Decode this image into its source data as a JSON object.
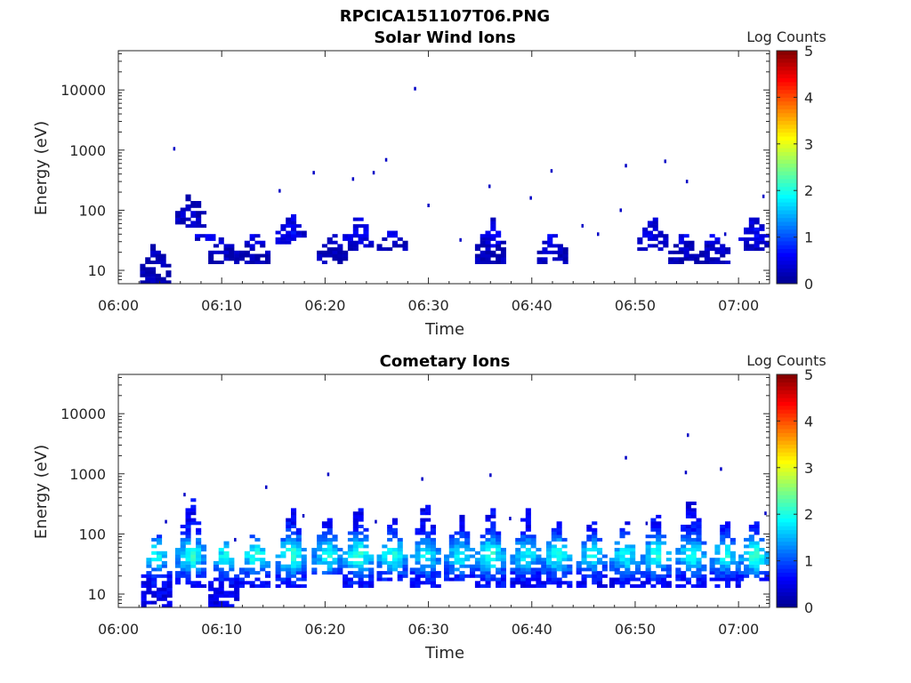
{
  "figure": {
    "title": "RPCICA151107T06.PNG"
  },
  "chart_data": [
    {
      "type": "heatmap",
      "title": "Solar Wind Ions",
      "xlabel": "Time",
      "ylabel": "Energy (eV)",
      "x_ticks": [
        "06:00",
        "06:10",
        "06:20",
        "06:30",
        "06:40",
        "06:50",
        "07:00"
      ],
      "y_ticks": [
        "10",
        "100",
        "1000",
        "10000"
      ],
      "y_scale": "log",
      "xlim": [
        "06:00",
        "07:03"
      ],
      "ylim": [
        6,
        45000
      ],
      "colorbar": {
        "label": "Log Counts",
        "ticks": [
          "0",
          "1",
          "2",
          "3",
          "4",
          "5"
        ],
        "range": [
          0,
          5
        ],
        "colormap": "jet"
      },
      "colormap": [
        "#00008f",
        "#0000ff",
        "#0080ff",
        "#00ffff",
        "#80ff80",
        "#ffff00",
        "#ff8000",
        "#ff0000",
        "#800000"
      ],
      "cell_width_min": 0.5,
      "bursts": [
        {
          "t": 3.4,
          "elo": 6,
          "ehi": 32,
          "level": 0.35
        },
        {
          "t": 6.8,
          "elo": 50,
          "ehi": 210,
          "level": 0.4
        },
        {
          "t": 8.2,
          "elo": 30,
          "ehi": 45,
          "level": 0.4
        },
        {
          "t": 10.0,
          "elo": 12,
          "ehi": 38,
          "level": 0.4
        },
        {
          "t": 13.0,
          "elo": 12,
          "ehi": 45,
          "level": 0.45
        },
        {
          "t": 16.5,
          "elo": 25,
          "ehi": 85,
          "level": 0.45
        },
        {
          "t": 20.5,
          "elo": 12,
          "ehi": 40,
          "level": 0.4
        },
        {
          "t": 23.0,
          "elo": 20,
          "ehi": 90,
          "level": 0.45
        },
        {
          "t": 26.3,
          "elo": 20,
          "ehi": 45,
          "level": 0.4
        },
        {
          "t": 35.8,
          "elo": 12,
          "ehi": 80,
          "level": 0.45
        },
        {
          "t": 41.8,
          "elo": 12,
          "ehi": 45,
          "level": 0.45
        },
        {
          "t": 51.5,
          "elo": 20,
          "ehi": 80,
          "level": 0.4
        },
        {
          "t": 54.5,
          "elo": 12,
          "ehi": 45,
          "level": 0.4
        },
        {
          "t": 57.5,
          "elo": 12,
          "ehi": 45,
          "level": 0.4
        },
        {
          "t": 61.3,
          "elo": 20,
          "ehi": 85,
          "level": 0.4
        }
      ],
      "sparse_points": [
        {
          "t": 5.3,
          "e": 1050,
          "level": 0.3
        },
        {
          "t": 28.6,
          "e": 10500,
          "level": 0.3
        },
        {
          "t": 18.8,
          "e": 420,
          "level": 0.3
        },
        {
          "t": 22.6,
          "e": 330,
          "level": 0.3
        },
        {
          "t": 24.6,
          "e": 420,
          "level": 0.3
        },
        {
          "t": 25.8,
          "e": 690,
          "level": 0.3
        },
        {
          "t": 41.8,
          "e": 450,
          "level": 0.3
        },
        {
          "t": 49.0,
          "e": 550,
          "level": 0.3
        },
        {
          "t": 52.8,
          "e": 650,
          "level": 0.3
        },
        {
          "t": 35.8,
          "e": 250,
          "level": 0.3
        },
        {
          "t": 15.5,
          "e": 210,
          "level": 0.3
        },
        {
          "t": 29.9,
          "e": 120,
          "level": 0.3
        },
        {
          "t": 48.5,
          "e": 100,
          "level": 0.3
        },
        {
          "t": 39.8,
          "e": 160,
          "level": 0.3
        },
        {
          "t": 62.3,
          "e": 170,
          "level": 0.3
        },
        {
          "t": 54.9,
          "e": 300,
          "level": 0.3
        },
        {
          "t": 44.8,
          "e": 55,
          "level": 0.3
        },
        {
          "t": 33.0,
          "e": 32,
          "level": 0.3
        },
        {
          "t": 46.3,
          "e": 40,
          "level": 0.3
        },
        {
          "t": 58.6,
          "e": 40,
          "level": 0.3
        }
      ]
    },
    {
      "type": "heatmap",
      "title": "Cometary Ions",
      "xlabel": "Time",
      "ylabel": "Energy (eV)",
      "x_ticks": [
        "06:00",
        "06:10",
        "06:20",
        "06:30",
        "06:40",
        "06:50",
        "07:00"
      ],
      "y_ticks": [
        "10",
        "100",
        "1000",
        "10000"
      ],
      "y_scale": "log",
      "xlim": [
        "06:00",
        "07:03"
      ],
      "ylim": [
        6,
        45000
      ],
      "colorbar": {
        "label": "Log Counts",
        "ticks": [
          "0",
          "1",
          "2",
          "3",
          "4",
          "5"
        ],
        "range": [
          0,
          5
        ],
        "colormap": "jet"
      },
      "colormap": [
        "#00008f",
        "#0000ff",
        "#0080ff",
        "#00ffff",
        "#80ff80",
        "#ffff00",
        "#ff8000",
        "#ff0000",
        "#800000"
      ],
      "cell_width_min": 0.5,
      "bursts": [
        {
          "t": 3.5,
          "elo": 6,
          "ehi": 120,
          "level": 1.45
        },
        {
          "t": 6.8,
          "elo": 12,
          "ehi": 550,
          "level": 1.6
        },
        {
          "t": 10.0,
          "elo": 6,
          "ehi": 90,
          "level": 1.45
        },
        {
          "t": 13.0,
          "elo": 12,
          "ehi": 120,
          "level": 1.6
        },
        {
          "t": 16.5,
          "elo": 12,
          "ehi": 320,
          "level": 1.7
        },
        {
          "t": 20.0,
          "elo": 20,
          "ehi": 220,
          "level": 1.5
        },
        {
          "t": 23.0,
          "elo": 12,
          "ehi": 360,
          "level": 1.65
        },
        {
          "t": 26.3,
          "elo": 15,
          "ehi": 220,
          "level": 1.6
        },
        {
          "t": 29.5,
          "elo": 12,
          "ehi": 420,
          "level": 1.45
        },
        {
          "t": 32.8,
          "elo": 15,
          "ehi": 260,
          "level": 1.45
        },
        {
          "t": 35.8,
          "elo": 12,
          "ehi": 400,
          "level": 1.65
        },
        {
          "t": 39.2,
          "elo": 12,
          "ehi": 320,
          "level": 1.45
        },
        {
          "t": 42.2,
          "elo": 12,
          "ehi": 200,
          "level": 1.6
        },
        {
          "t": 45.6,
          "elo": 12,
          "ehi": 200,
          "level": 1.45
        },
        {
          "t": 48.8,
          "elo": 12,
          "ehi": 200,
          "level": 1.5
        },
        {
          "t": 51.8,
          "elo": 12,
          "ehi": 300,
          "level": 1.6
        },
        {
          "t": 55.2,
          "elo": 12,
          "ehi": 600,
          "level": 1.55
        },
        {
          "t": 58.5,
          "elo": 12,
          "ehi": 200,
          "level": 1.5
        },
        {
          "t": 61.3,
          "elo": 15,
          "ehi": 200,
          "level": 1.65
        }
      ],
      "sparse_points": [
        {
          "t": 20.2,
          "e": 980,
          "level": 0.3
        },
        {
          "t": 29.3,
          "e": 820,
          "level": 0.3
        },
        {
          "t": 35.9,
          "e": 950,
          "level": 0.3
        },
        {
          "t": 49.0,
          "e": 1850,
          "level": 0.3
        },
        {
          "t": 55.0,
          "e": 4400,
          "level": 0.3
        },
        {
          "t": 54.8,
          "e": 1050,
          "level": 0.3
        },
        {
          "t": 58.2,
          "e": 1200,
          "level": 0.3
        },
        {
          "t": 14.2,
          "e": 600,
          "level": 0.3
        },
        {
          "t": 11.2,
          "e": 80,
          "level": 0.3
        },
        {
          "t": 4.5,
          "e": 160,
          "level": 0.3
        },
        {
          "t": 17.8,
          "e": 200,
          "level": 0.3
        },
        {
          "t": 24.8,
          "e": 160,
          "level": 0.3
        },
        {
          "t": 37.8,
          "e": 180,
          "level": 0.3
        },
        {
          "t": 51.0,
          "e": 150,
          "level": 0.3
        },
        {
          "t": 62.5,
          "e": 220,
          "level": 0.3
        },
        {
          "t": 6.3,
          "e": 450,
          "level": 0.3
        }
      ]
    }
  ]
}
